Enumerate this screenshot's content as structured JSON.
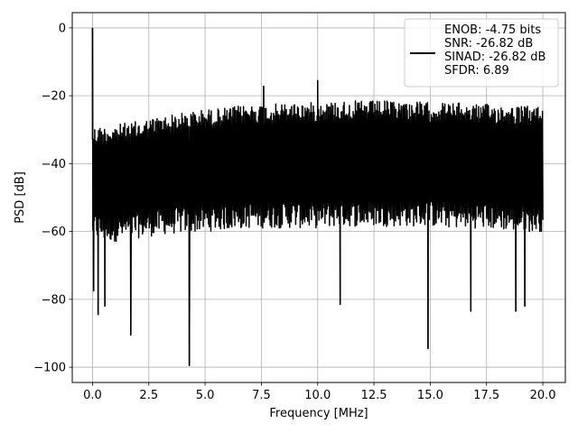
{
  "chart_data": {
    "type": "line",
    "xlabel": "Frequency [MHz]",
    "ylabel": "PSD [dB]",
    "xlim": [
      -0.9,
      21.0
    ],
    "ylim": [
      -104.5,
      4.5
    ],
    "xticks": [
      0.0,
      2.5,
      5.0,
      7.5,
      10.0,
      12.5,
      15.0,
      17.5,
      20.0
    ],
    "xtick_labels": [
      "0.0",
      "2.5",
      "5.0",
      "7.5",
      "10.0",
      "12.5",
      "15.0",
      "17.5",
      "20.0"
    ],
    "yticks": [
      0,
      -20,
      -40,
      -60,
      -80,
      -100
    ],
    "ytick_labels": [
      "0",
      "−20",
      "−40",
      "−60",
      "−80",
      "−100"
    ],
    "grid": true,
    "legend_position": "top-right",
    "series": [
      {
        "name": "ENOB: -4.75 bits\nSNR: -26.82 dB\nSINAD: -26.82 dB\nSFDR: 6.89",
        "legend_lines": [
          "ENOB: -4.75 bits",
          "SNR: -26.82 dB",
          "SINAD: -26.82 dB",
          "SFDR: 6.89"
        ],
        "color": "#000000",
        "x_range": [
          0.0,
          20.0
        ],
        "upper_envelope": {
          "x": [
            0.0,
            0.5,
            1.0,
            2.0,
            3.0,
            4.0,
            5.0,
            6.0,
            7.0,
            8.0,
            9.0,
            10.0,
            11.0,
            12.0,
            13.0,
            14.0,
            15.0,
            16.0,
            17.0,
            18.0,
            19.0,
            20.0
          ],
          "y": [
            -29,
            -29,
            -28.5,
            -27.5,
            -26,
            -25,
            -24,
            -23.5,
            -22.5,
            -22.5,
            -22,
            -22,
            -21.5,
            -21.5,
            -21.5,
            -21.5,
            -22,
            -22,
            -22.5,
            -22.5,
            -23,
            -23
          ]
        },
        "lower_envelope": {
          "x": [
            0.0,
            0.5,
            1.0,
            2.0,
            3.0,
            4.0,
            5.0,
            6.0,
            7.0,
            8.0,
            9.0,
            10.0,
            11.0,
            12.0,
            13.0,
            14.0,
            15.0,
            16.0,
            17.0,
            18.0,
            19.0,
            20.0
          ],
          "y": [
            -62,
            -63,
            -63,
            -62,
            -61,
            -60.5,
            -60,
            -59.5,
            -59,
            -59,
            -59,
            -59,
            -58.5,
            -58.5,
            -58.5,
            -58.5,
            -58.5,
            -59,
            -59,
            -59.5,
            -60,
            -60
          ]
        },
        "peaks": [
          {
            "x": 0.0,
            "y": 0.0
          },
          {
            "x": 10.0,
            "y": -15.5
          },
          {
            "x": 7.6,
            "y": -17.2
          }
        ],
        "dips": [
          {
            "x": 0.05,
            "y": -77.5
          },
          {
            "x": 0.25,
            "y": -84.5
          },
          {
            "x": 0.55,
            "y": -82.0
          },
          {
            "x": 1.7,
            "y": -90.5
          },
          {
            "x": 4.3,
            "y": -99.5
          },
          {
            "x": 11.0,
            "y": -81.5
          },
          {
            "x": 14.9,
            "y": -94.5
          },
          {
            "x": 16.8,
            "y": -83.5
          },
          {
            "x": 18.8,
            "y": -83.5
          },
          {
            "x": 19.2,
            "y": -82.0
          }
        ],
        "n_points": 1200
      }
    ]
  }
}
